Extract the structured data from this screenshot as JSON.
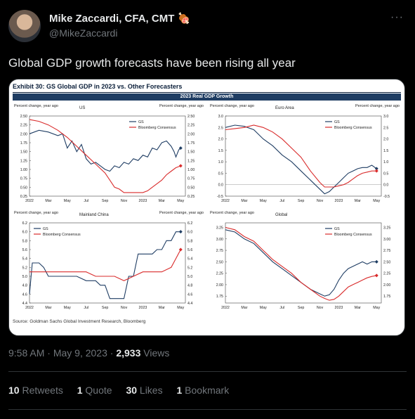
{
  "author": {
    "name": "Mike Zaccardi, CFA, CMT 🍖",
    "handle": "@MikeZaccardi"
  },
  "tweet_text": "Global GDP growth forecasts have been rising all year",
  "menu_icon": "more-dots-icon",
  "exhibit": {
    "title": "Exhibit 30: GS Global GDP in 2023 vs. Other Forecasters",
    "banner": "2023 Real GDP Growth",
    "source": "Source: Goldman Sachs Global Investment Research, Bloomberg"
  },
  "chart_data": [
    {
      "type": "line",
      "title": "US",
      "ylabel_left": "Percent change, year ago",
      "ylabel_right": "Percent change, year ago",
      "ylim": [
        0.25,
        2.5
      ],
      "yticks": [
        "2.50",
        "2.25",
        "2.00",
        "1.75",
        "1.50",
        "1.25",
        "1.00",
        "0.75",
        "0.50",
        "0.25"
      ],
      "xticks": [
        "2022",
        "Mar",
        "May",
        "Jul",
        "Sep",
        "Nov",
        "2023",
        "Mar",
        "May"
      ],
      "x_range": [
        0,
        16.5
      ],
      "series": [
        {
          "name": "GS",
          "color": "#1f3d63",
          "x": [
            0,
            1,
            2,
            3,
            3.5,
            4,
            4.5,
            5,
            5.5,
            6,
            6.5,
            7,
            7.5,
            8,
            8.5,
            9,
            9.5,
            10,
            10.5,
            11,
            11.5,
            12,
            12.5,
            13,
            13.5,
            14,
            14.5,
            15,
            15.3,
            15.5,
            15.8,
            16
          ],
          "y": [
            2.0,
            2.1,
            2.05,
            1.95,
            2.0,
            1.6,
            1.8,
            1.5,
            1.7,
            1.3,
            1.15,
            1.2,
            1.1,
            1.0,
            0.95,
            1.1,
            1.05,
            1.2,
            1.15,
            1.3,
            1.25,
            1.4,
            1.35,
            1.6,
            1.55,
            1.75,
            1.8,
            1.65,
            1.5,
            1.35,
            1.55,
            1.6
          ]
        },
        {
          "name": "Bloomberg Consensus",
          "color": "#d92b2b",
          "x": [
            0,
            1,
            2,
            3,
            4,
            5,
            6,
            7,
            8,
            8.5,
            9,
            9.5,
            10,
            10.5,
            11,
            11.5,
            12,
            12.5,
            13,
            13.5,
            14,
            14.5,
            15,
            15.5,
            16
          ],
          "y": [
            2.4,
            2.35,
            2.25,
            2.1,
            1.9,
            1.65,
            1.4,
            1.15,
            0.9,
            0.7,
            0.5,
            0.45,
            0.35,
            0.35,
            0.35,
            0.35,
            0.35,
            0.4,
            0.5,
            0.6,
            0.7,
            0.85,
            0.95,
            1.05,
            1.1
          ]
        }
      ]
    },
    {
      "type": "line",
      "title": "Euro Area",
      "ylabel_left": "Percent change, year ago",
      "ylabel_right": "Percent change, year ago",
      "ylim": [
        -0.5,
        3.0
      ],
      "yticks": [
        "3.0",
        "2.5",
        "2.0",
        "1.5",
        "1.0",
        "0.5",
        "0.0",
        "-0.5"
      ],
      "xticks": [
        "2022",
        "Mar",
        "May",
        "Jul",
        "Sep",
        "Nov",
        "2023",
        "Mar",
        "May"
      ],
      "x_range": [
        0,
        16.5
      ],
      "series": [
        {
          "name": "GS",
          "color": "#1f3d63",
          "x": [
            0,
            1,
            2,
            3,
            4,
            5,
            6,
            7,
            8,
            9,
            10,
            10.5,
            11,
            11.5,
            12,
            12.5,
            13,
            13.5,
            14,
            14.5,
            15,
            15.5,
            16
          ],
          "y": [
            2.5,
            2.6,
            2.55,
            2.4,
            2.0,
            1.7,
            1.3,
            1.0,
            0.6,
            0.2,
            -0.2,
            -0.4,
            -0.3,
            -0.1,
            0.1,
            0.3,
            0.5,
            0.6,
            0.7,
            0.75,
            0.75,
            0.85,
            0.7
          ]
        },
        {
          "name": "Bloomberg Consensus",
          "color": "#d92b2b",
          "x": [
            0,
            1,
            2,
            3,
            4,
            5,
            6,
            7,
            8,
            9,
            10,
            10.5,
            11,
            11.5,
            12,
            12.5,
            13,
            13.5,
            14,
            14.5,
            15,
            15.5,
            16
          ],
          "y": [
            2.4,
            2.45,
            2.5,
            2.6,
            2.5,
            2.3,
            2.0,
            1.6,
            1.2,
            0.6,
            0.1,
            -0.1,
            -0.1,
            -0.1,
            -0.05,
            0.0,
            0.1,
            0.25,
            0.4,
            0.5,
            0.55,
            0.6,
            0.6
          ]
        }
      ]
    },
    {
      "type": "line",
      "title": "Mainland China",
      "ylabel_left": "Percent change, year ago",
      "ylabel_right": "Percent change, year ago",
      "ylim": [
        4.4,
        6.2
      ],
      "yticks": [
        "6.2",
        "6.0",
        "5.8",
        "5.6",
        "5.4",
        "5.2",
        "5.0",
        "4.8",
        "4.6",
        "4.4"
      ],
      "xticks": [
        "2022",
        "Mar",
        "May",
        "Jul",
        "Sep",
        "Nov",
        "2023",
        "Mar",
        "May"
      ],
      "x_range": [
        0,
        16.5
      ],
      "series": [
        {
          "name": "GS",
          "color": "#1f3d63",
          "x": [
            0,
            0.3,
            1,
            1.5,
            2,
            3,
            4,
            5,
            6,
            7,
            7.5,
            8,
            8.5,
            9,
            9.5,
            10,
            10.5,
            11,
            11.5,
            12,
            12.5,
            13,
            13.5,
            14,
            14.5,
            15,
            15.5,
            16
          ],
          "y": [
            4.6,
            5.3,
            5.3,
            5.2,
            5.0,
            5.0,
            5.0,
            5.0,
            4.9,
            4.9,
            4.8,
            4.8,
            4.5,
            4.5,
            4.5,
            4.5,
            5.0,
            5.0,
            5.5,
            5.5,
            5.5,
            5.5,
            5.6,
            5.6,
            5.8,
            5.8,
            6.0,
            6.0
          ]
        },
        {
          "name": "Bloomberg Consensus",
          "color": "#d92b2b",
          "x": [
            0,
            1,
            2,
            3,
            4,
            5,
            6,
            7,
            8,
            9,
            10,
            11,
            12,
            13,
            14,
            15,
            15.5,
            16
          ],
          "y": [
            5.1,
            5.1,
            5.1,
            5.1,
            5.1,
            5.1,
            5.1,
            5.0,
            5.0,
            5.0,
            4.9,
            5.0,
            5.1,
            5.1,
            5.1,
            5.2,
            5.4,
            5.6
          ]
        }
      ]
    },
    {
      "type": "line",
      "title": "Global",
      "ylabel_left": "Percent change, year ago",
      "ylabel_right": "",
      "ylim": [
        1.6,
        3.35
      ],
      "yticks": [
        "3.25",
        "3.00",
        "2.75",
        "2.50",
        "2.25",
        "2.00",
        "1.75"
      ],
      "xticks": [
        "2022",
        "Mar",
        "May",
        "Jul",
        "Sep",
        "Nov",
        "2023",
        "Mar",
        "May"
      ],
      "x_range": [
        0,
        16.5
      ],
      "series": [
        {
          "name": "GS",
          "color": "#1f3d63",
          "x": [
            0,
            1,
            2,
            3,
            4,
            5,
            6,
            7,
            8,
            9,
            10,
            10.5,
            11,
            11.5,
            12,
            12.5,
            13,
            13.5,
            14,
            14.5,
            15,
            15.5,
            16
          ],
          "y": [
            3.2,
            3.15,
            3.0,
            2.9,
            2.7,
            2.5,
            2.35,
            2.2,
            2.05,
            1.9,
            1.8,
            1.75,
            1.78,
            1.9,
            2.1,
            2.25,
            2.35,
            2.4,
            2.45,
            2.5,
            2.45,
            2.5,
            2.5
          ]
        },
        {
          "name": "Bloomberg Consensus",
          "color": "#d92b2b",
          "x": [
            0,
            1,
            2,
            3,
            4,
            5,
            6,
            7,
            8,
            9,
            10,
            10.5,
            11,
            11.5,
            12,
            12.5,
            13,
            13.5,
            14,
            14.5,
            15,
            15.5,
            16
          ],
          "y": [
            3.25,
            3.2,
            3.05,
            2.95,
            2.75,
            2.55,
            2.4,
            2.25,
            2.05,
            1.9,
            1.75,
            1.7,
            1.66,
            1.68,
            1.75,
            1.85,
            1.95,
            2.0,
            2.05,
            2.1,
            2.15,
            2.18,
            2.2
          ]
        }
      ]
    }
  ],
  "timestamp": {
    "time": "9:58 AM",
    "date": "May 9, 2023",
    "views_count": "2,933",
    "views_label": "Views"
  },
  "stats": {
    "retweets_count": "10",
    "retweets_label": "Retweets",
    "quotes_count": "1",
    "quotes_label": "Quote",
    "likes_count": "30",
    "likes_label": "Likes",
    "bookmarks_count": "1",
    "bookmarks_label": "Bookmark"
  }
}
